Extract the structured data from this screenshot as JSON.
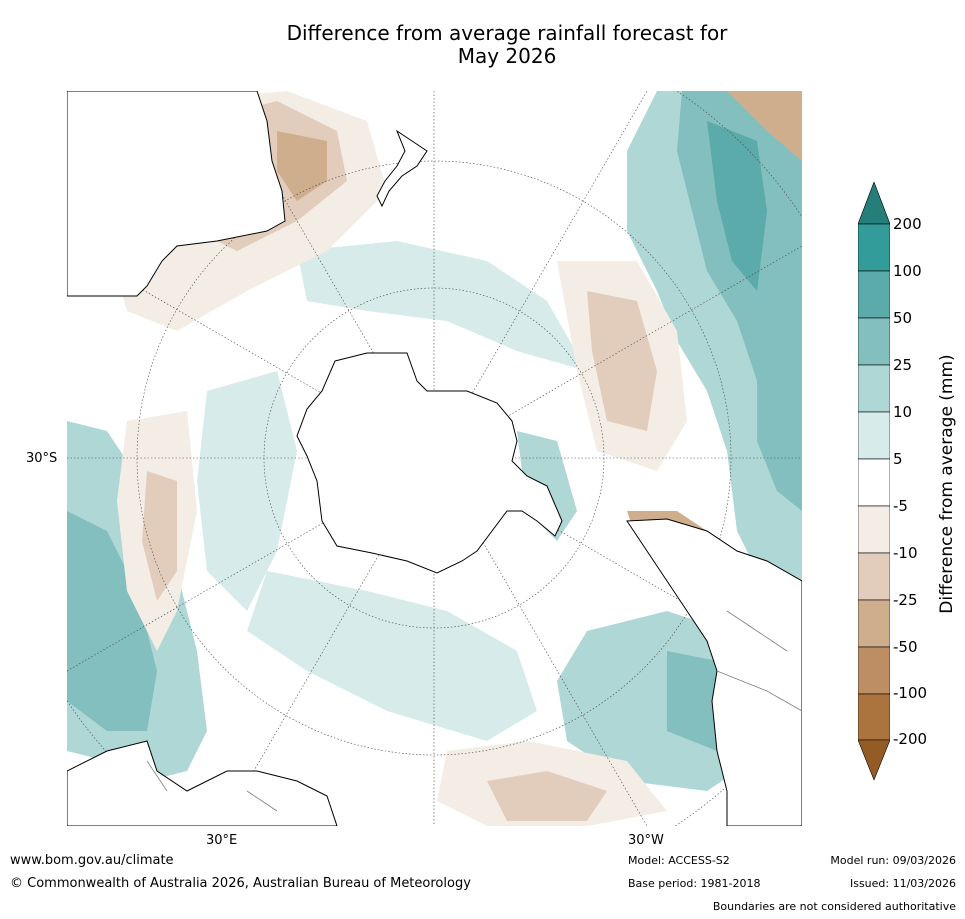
{
  "title_line1": "Difference from average rainfall forecast for",
  "title_line2": "May 2026",
  "map": {
    "projection": "south-polar-stereographic",
    "latitude_label": "30°S",
    "longitude_labels": {
      "east": "30°E",
      "west": "30°W"
    },
    "land_color": "#ffffff",
    "coastline_color": "#000000",
    "boundary_color": "#808080"
  },
  "legend": {
    "title": "Difference from average (mm)",
    "ticks": [
      "200",
      "100",
      "50",
      "25",
      "10",
      "5",
      "-5",
      "-10",
      "-25",
      "-50",
      "-100",
      "-200"
    ],
    "colors": {
      "gt_200": "#267e7b",
      "100_200": "#319c99",
      "50_100": "#5aaba9",
      "25_50": "#82bfbe",
      "10_25": "#aed7d6",
      "5_10": "#d6ebea",
      "-5_5": "#ffffff",
      "-10_-5": "#f3ede6",
      "-25_-10": "#e2cdbd",
      "-50_-25": "#cfae8e",
      "-100_-50": "#bd8e64",
      "-200_-100": "#ab743f",
      "lt_-200": "#945c25"
    }
  },
  "footer": {
    "url": "www.bom.gov.au/climate",
    "copyright": "© Commonwealth of Australia 2026, Australian Bureau of Meteorology",
    "model": "Model: ACCESS-S2",
    "base_period": "Base period: 1981-2018",
    "model_run": "Model run: 09/03/2026",
    "issued": "Issued: 11/03/2026",
    "disclaimer": "Boundaries are not considered authoritative"
  }
}
